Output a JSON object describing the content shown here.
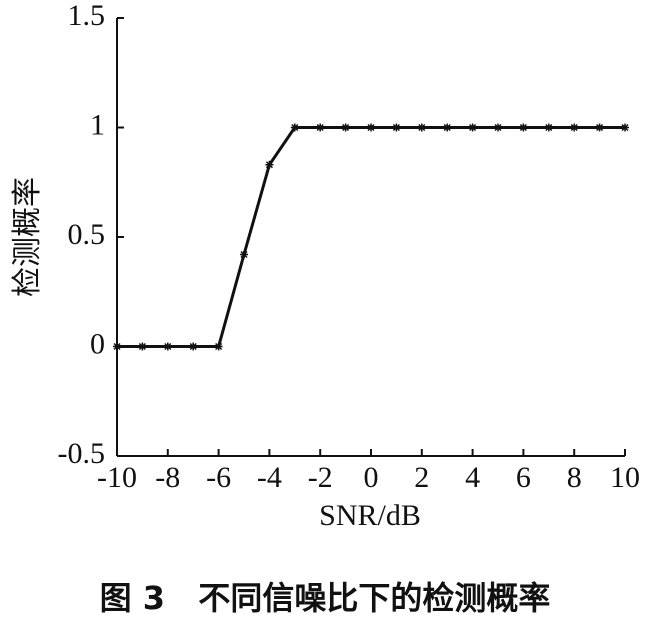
{
  "chart_data": {
    "type": "line",
    "xlabel": "SNR/dB",
    "ylabel": "检测概率",
    "caption": "图 3   不同信噪比下的检测概率",
    "x": [
      -10,
      -9,
      -8,
      -7,
      -6,
      -5,
      -4,
      -3,
      -2,
      -1,
      0,
      1,
      2,
      3,
      4,
      5,
      6,
      7,
      8,
      9,
      10
    ],
    "series": [
      {
        "name": "检测概率",
        "color": "#111111",
        "values": [
          0,
          0,
          0,
          0,
          0,
          0.42,
          0.83,
          1,
          1,
          1,
          1,
          1,
          1,
          1,
          1,
          1,
          1,
          1,
          1,
          1,
          1
        ]
      }
    ],
    "xlim": [
      -10,
      10
    ],
    "xticks": [
      -10,
      -8,
      -6,
      -4,
      -2,
      0,
      2,
      4,
      6,
      8,
      10
    ],
    "ylim": [
      -0.5,
      1.5
    ],
    "yticks": [
      -0.5,
      0,
      0.5,
      1,
      1.5
    ]
  }
}
